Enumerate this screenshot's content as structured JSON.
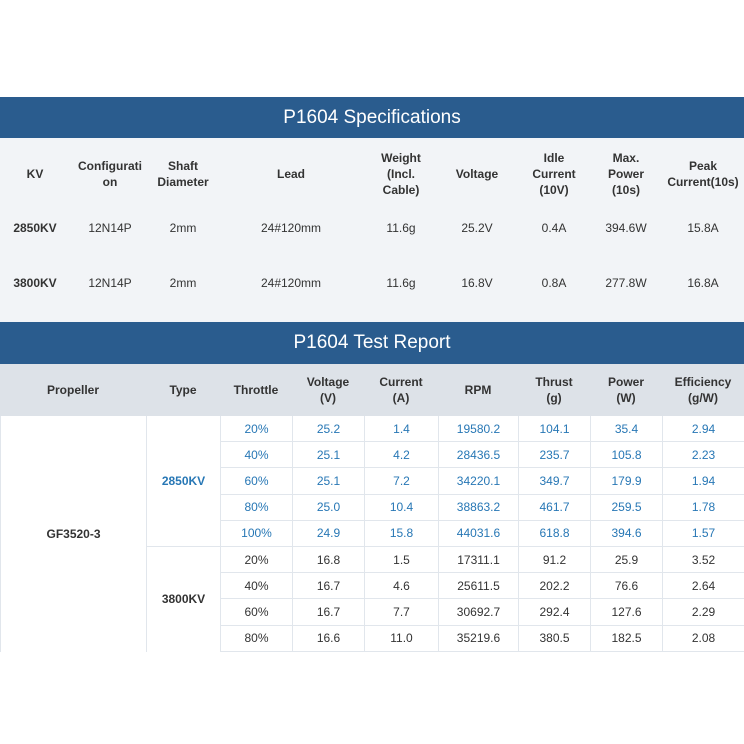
{
  "spec": {
    "title": "P1604 Specifications",
    "headers": [
      "KV",
      "Configurati\non",
      "Shaft\nDiameter",
      "Lead",
      "Weight\n(Incl.\nCable)",
      "Voltage",
      "Idle\nCurrent\n(10V)",
      "Max.\nPower\n(10s)",
      "Peak\nCurrent(10s)"
    ],
    "rows": [
      [
        "2850KV",
        "12N14P",
        "2mm",
        "24#120mm",
        "11.6g",
        "25.2V",
        "0.4A",
        "394.6W",
        "15.8A"
      ],
      [
        "3800KV",
        "12N14P",
        "2mm",
        "24#120mm",
        "11.6g",
        "16.8V",
        "0.8A",
        "277.8W",
        "16.8A"
      ]
    ]
  },
  "test": {
    "title": "P1604 Test Report",
    "headers": [
      "Propeller",
      "Type",
      "Throttle",
      "Voltage\n(V)",
      "Current\n(A)",
      "RPM",
      "Thrust\n(g)",
      "Power\n(W)",
      "Efficiency\n(g/W)"
    ],
    "propeller": "GF3520-3",
    "type_2850": "2850KV",
    "type_3800": "3800KV",
    "rows": [
      [
        "20%",
        "25.2",
        "1.4",
        "19580.2",
        "104.1",
        "35.4",
        "2.94"
      ],
      [
        "40%",
        "25.1",
        "4.2",
        "28436.5",
        "235.7",
        "105.8",
        "2.23"
      ],
      [
        "60%",
        "25.1",
        "7.2",
        "34220.1",
        "349.7",
        "179.9",
        "1.94"
      ],
      [
        "80%",
        "25.0",
        "10.4",
        "38863.2",
        "461.7",
        "259.5",
        "1.78"
      ],
      [
        "100%",
        "24.9",
        "15.8",
        "44031.6",
        "618.8",
        "394.6",
        "1.57"
      ],
      [
        "20%",
        "16.8",
        "1.5",
        "17311.1",
        "91.2",
        "25.9",
        "3.52"
      ],
      [
        "40%",
        "16.7",
        "4.6",
        "25611.5",
        "202.2",
        "76.6",
        "2.64"
      ],
      [
        "60%",
        "16.7",
        "7.7",
        "30692.7",
        "292.4",
        "127.6",
        "2.29"
      ],
      [
        "80%",
        "16.6",
        "11.0",
        "35219.6",
        "380.5",
        "182.5",
        "2.08"
      ]
    ],
    "colors": {
      "kv2850_text": "#2777b5",
      "kv3800_text": "#333333",
      "banner": "#2a5c8e"
    }
  }
}
